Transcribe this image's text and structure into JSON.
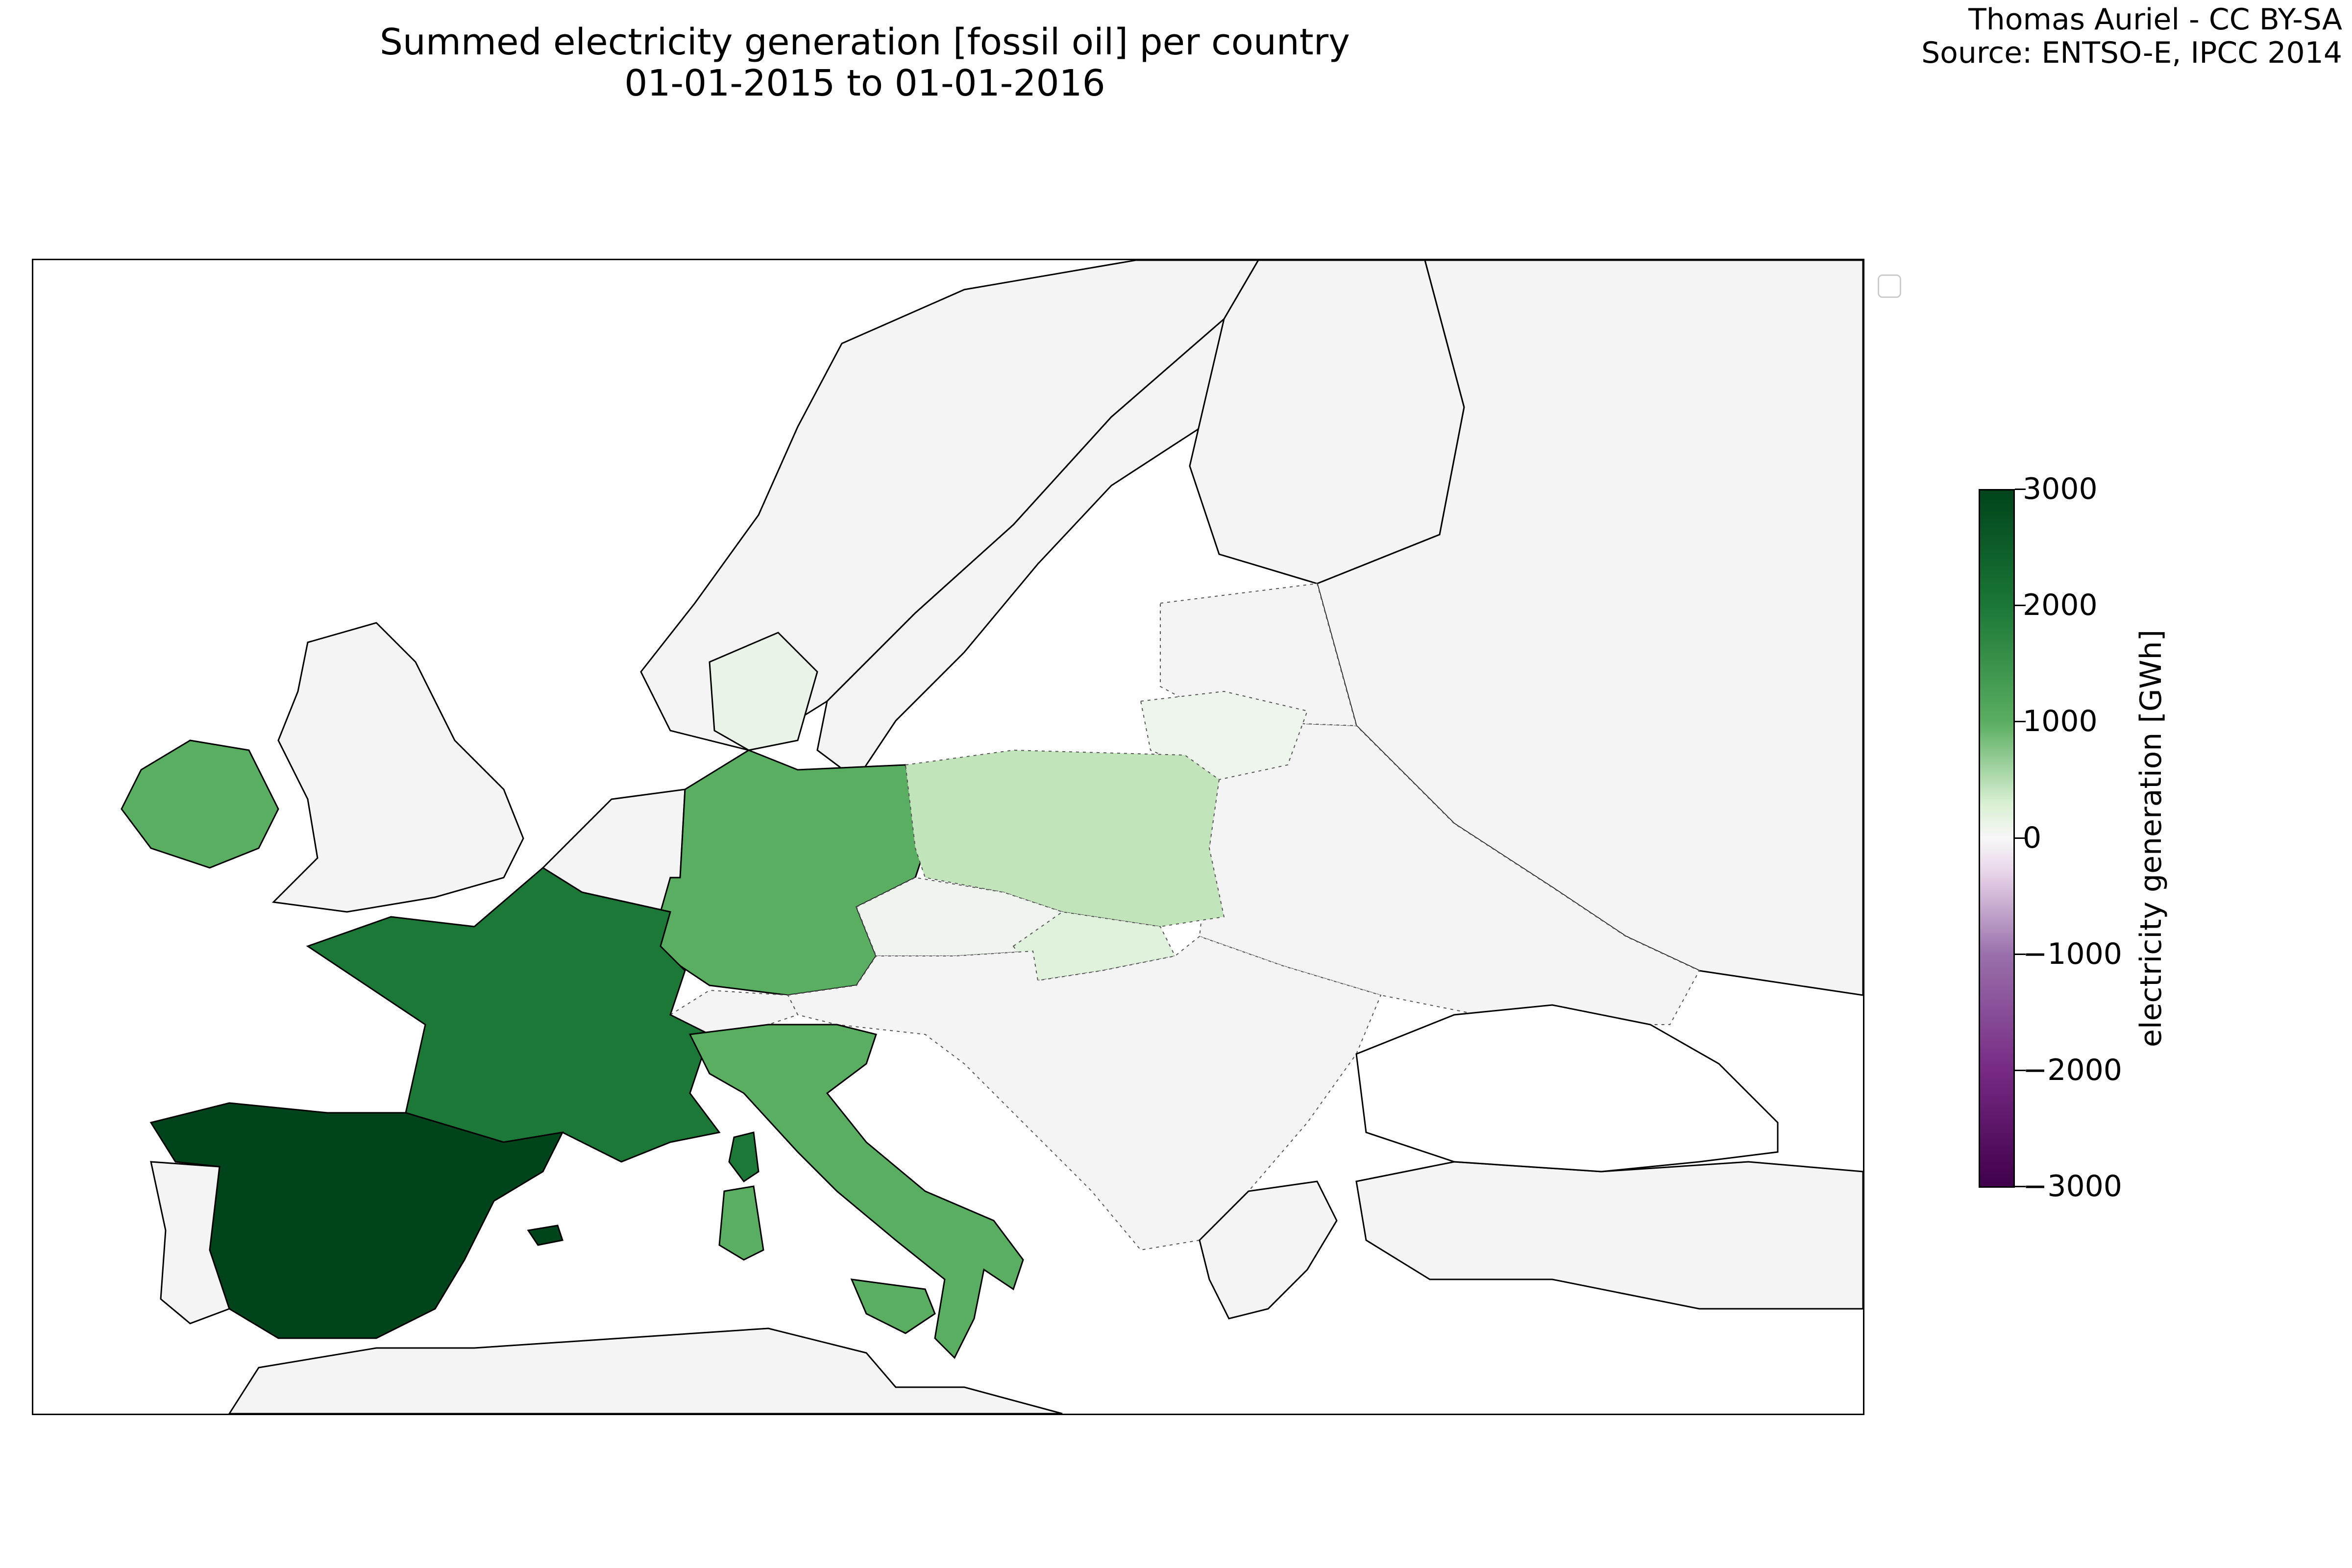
{
  "title": {
    "line1": "Summed electricity generation [fossil oil] per country",
    "line2": "01-01-2015 to 01-01-2016"
  },
  "attribution": {
    "author": "Thomas Auriel - CC BY-SA",
    "source": "Source: ENTSO-E, IPCC 2014"
  },
  "colorbar": {
    "label": "electricity generation [GWh]",
    "ticks": [
      "3000",
      "2000",
      "1000",
      "0",
      "−1000",
      "−2000",
      "−3000"
    ],
    "colormap": "PRGn",
    "min": -3000,
    "max": 3000
  },
  "map": {
    "region": "Europe",
    "colors": {
      "no_data": "#f4f4f4",
      "sea": "#ffffff",
      "coast": "#000000",
      "border_style": "dotted"
    },
    "country_values_gwh": [
      {
        "country": "Spain",
        "value": 2950
      },
      {
        "country": "France",
        "value": 2200
      },
      {
        "country": "Germany",
        "value": 1600
      },
      {
        "country": "Italy",
        "value": 1600
      },
      {
        "country": "Ireland",
        "value": 1500
      },
      {
        "country": "Poland",
        "value": 700
      },
      {
        "country": "Slovakia",
        "value": 300
      },
      {
        "country": "Lithuania",
        "value": 150
      },
      {
        "country": "Denmark",
        "value": 100
      },
      {
        "country": "Czech Republic",
        "value": 50
      },
      {
        "country": "Switzerland",
        "value": 30
      }
    ]
  }
}
